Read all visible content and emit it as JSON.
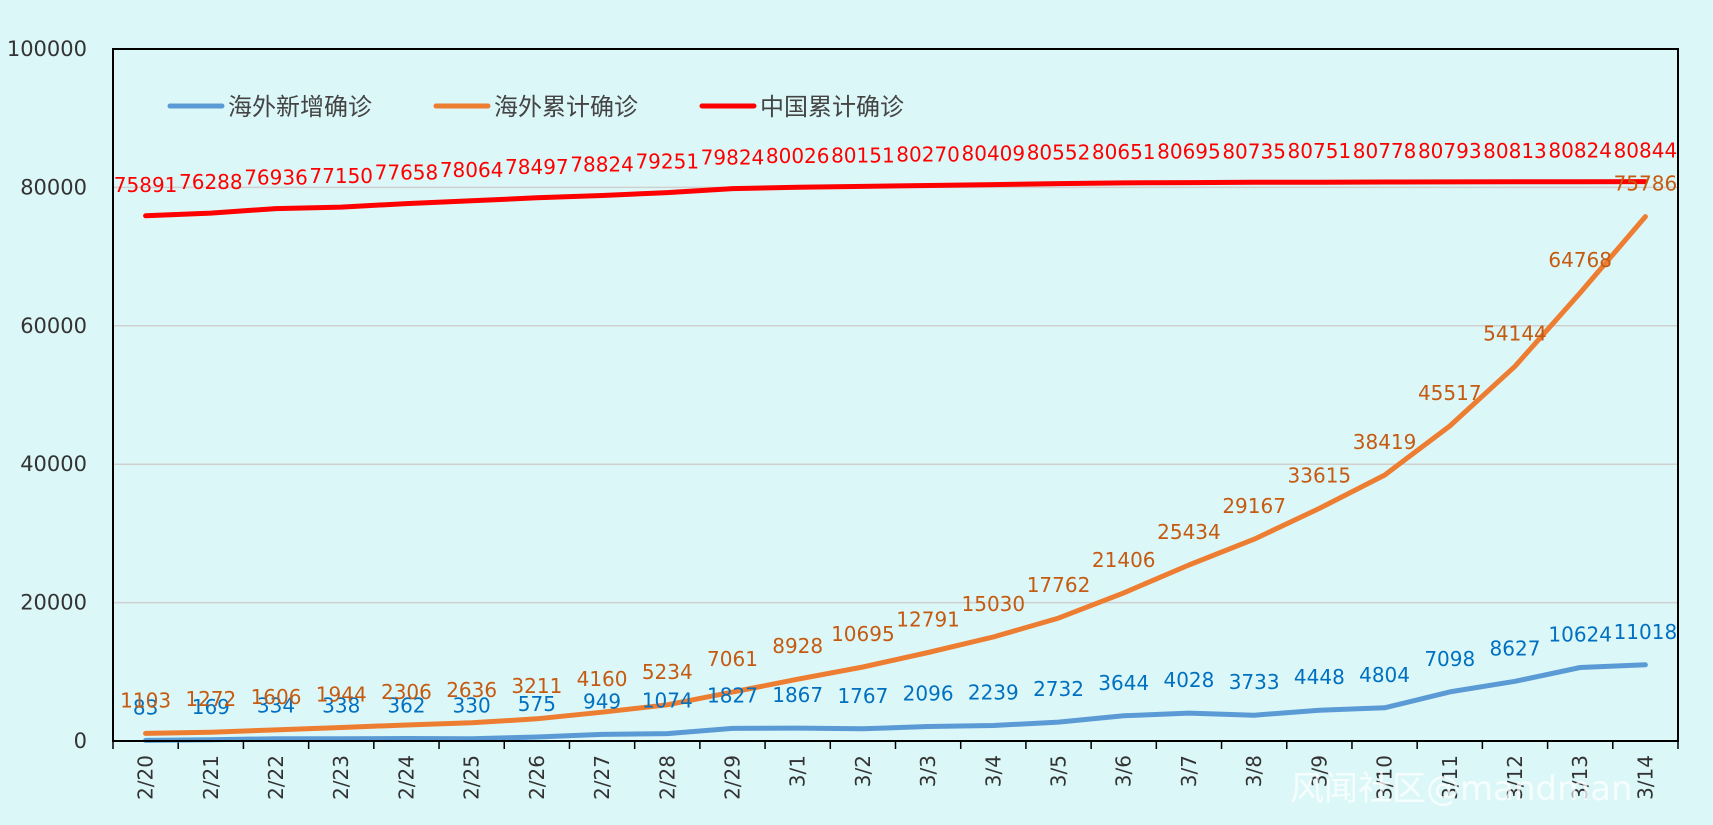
{
  "chart_data": {
    "type": "line",
    "categories": [
      "2/20",
      "2/21",
      "2/22",
      "2/23",
      "2/24",
      "2/25",
      "2/26",
      "2/27",
      "2/28",
      "2/29",
      "3/1",
      "3/2",
      "3/3",
      "3/4",
      "3/5",
      "3/6",
      "3/7",
      "3/8",
      "3/9",
      "3/10",
      "3/11",
      "3/12",
      "3/13",
      "3/14"
    ],
    "ylim": [
      0,
      100000
    ],
    "yticks": [
      0,
      20000,
      40000,
      60000,
      80000,
      100000
    ],
    "grid": true,
    "legend_position": "top-left",
    "series": [
      {
        "name": "海外新增确诊",
        "color": "#5b9bd5",
        "label_color": "#0070c0",
        "values": [
          83,
          169,
          334,
          338,
          362,
          330,
          575,
          949,
          1074,
          1827,
          1867,
          1767,
          2096,
          2239,
          2732,
          3644,
          4028,
          3733,
          4448,
          4804,
          7098,
          8627,
          10624,
          11018
        ]
      },
      {
        "name": "海外累计确诊",
        "color": "#ed7d31",
        "label_color": "#c55a11",
        "values": [
          1103,
          1272,
          1606,
          1944,
          2306,
          2636,
          3211,
          4160,
          5234,
          7061,
          8928,
          10695,
          12791,
          15030,
          17762,
          21406,
          25434,
          29167,
          33615,
          38419,
          45517,
          54144,
          64768,
          75786
        ]
      },
      {
        "name": "中国累计确诊",
        "color": "#ff0000",
        "label_color": "#ff0000",
        "values": [
          75891,
          76288,
          76936,
          77150,
          77658,
          78064,
          78497,
          78824,
          79251,
          79824,
          80026,
          80151,
          80270,
          80409,
          80552,
          80651,
          80695,
          80735,
          80751,
          80778,
          80793,
          80813,
          80824,
          80844
        ]
      }
    ]
  },
  "watermark": "风闻社区@mandman"
}
